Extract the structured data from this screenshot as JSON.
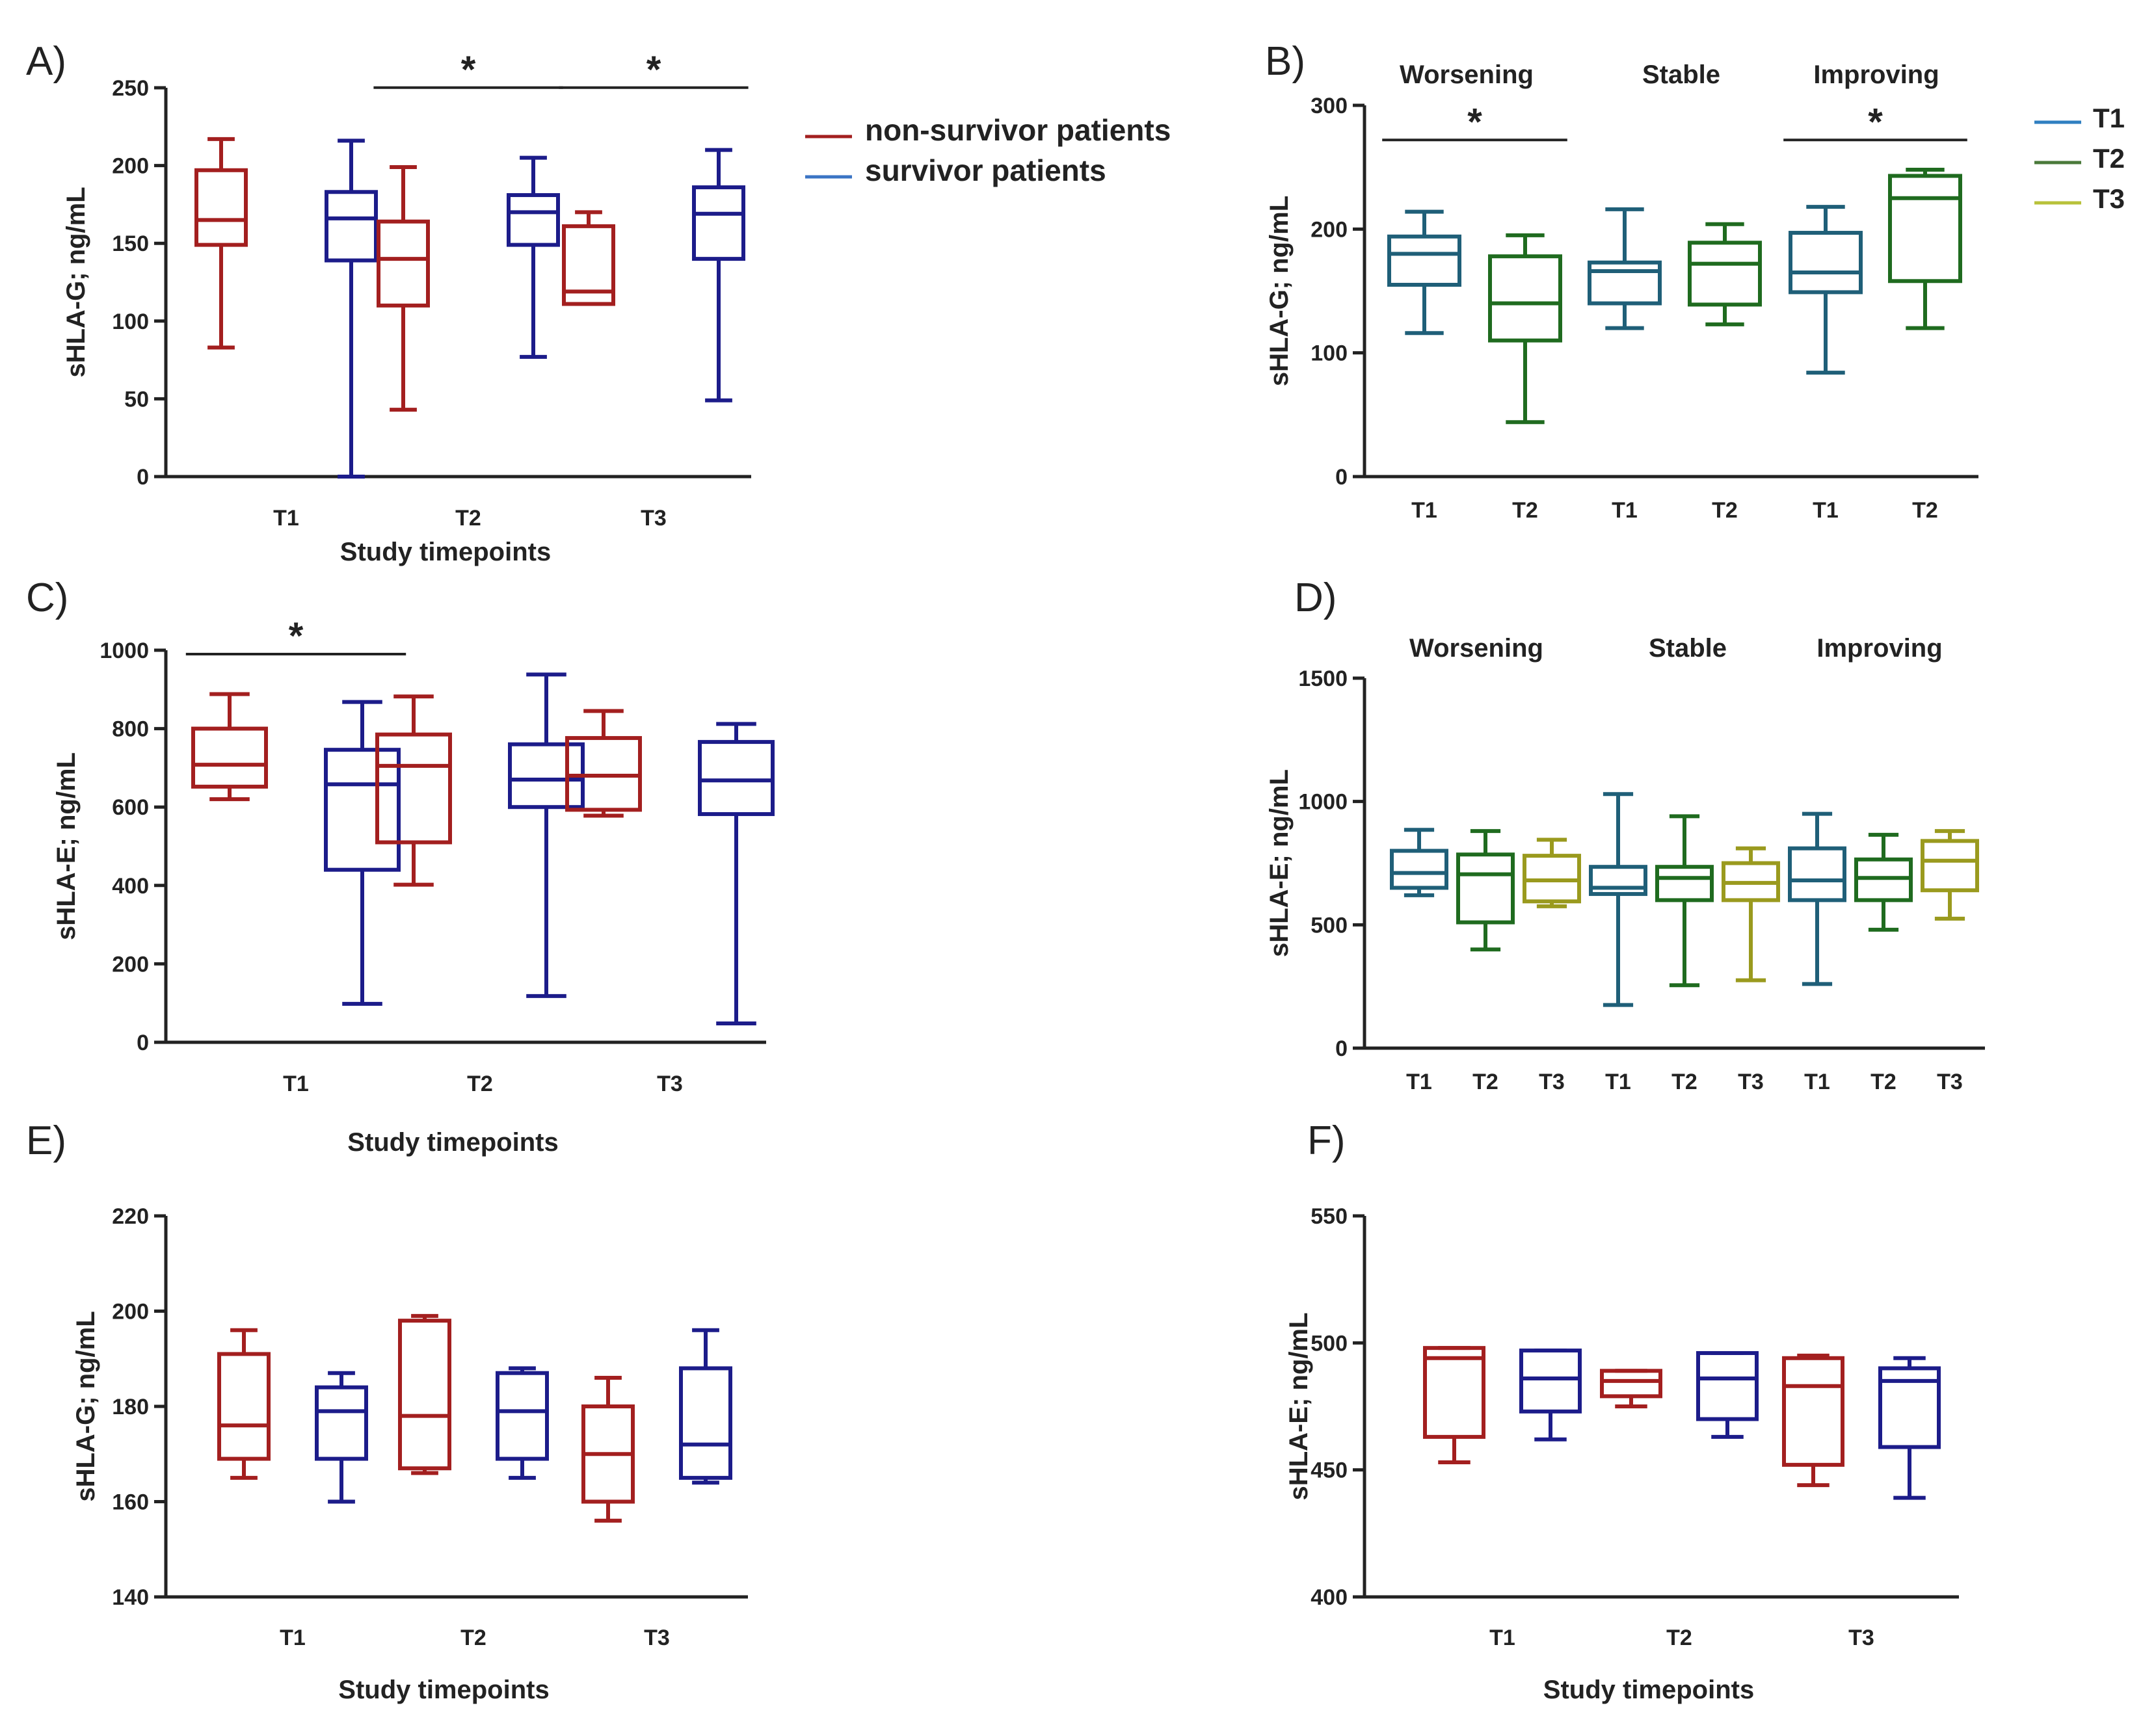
{
  "colors": {
    "non_survivor": "#a31f1f",
    "survivor": "#1c1c8a",
    "T1": "#1f5f78",
    "T2": "#1f6b1f",
    "T3": "#9a9a1e",
    "axis": "#222222",
    "legend_T1": "#2f7fc1",
    "legend_T2": "#4a7a3a",
    "legend_T3": "#b8c23a",
    "legend_survivor": "#3b74c4"
  },
  "legend_AB": [
    {
      "label": "non-survivor patients",
      "color_key": "non_survivor"
    },
    {
      "label": "survivor patients",
      "color_key": "legend_survivor"
    }
  ],
  "legend_BD": [
    {
      "label": "T1",
      "color_key": "legend_T1"
    },
    {
      "label": "T2",
      "color_key": "legend_T2"
    },
    {
      "label": "T3",
      "color_key": "legend_T3"
    }
  ],
  "chart_data": [
    {
      "id": "A",
      "panel_label": "A)",
      "type": "box",
      "ylabel": "sHLA-G; ng/mL",
      "xlabel": "Study timepoints",
      "ylim": [
        0,
        250
      ],
      "yticks": [
        0,
        50,
        100,
        150,
        200,
        250
      ],
      "categories": [
        "T1",
        "T2",
        "T3"
      ],
      "group_labels": [],
      "boxes": [
        {
          "cat": 0,
          "offset": -1,
          "color_key": "non_survivor",
          "whislo": 83,
          "q1": 149,
          "med": 165,
          "q3": 197,
          "whishi": 217
        },
        {
          "cat": 0,
          "offset": 1,
          "color_key": "survivor",
          "whislo": 0,
          "q1": 139,
          "med": 166,
          "q3": 183,
          "whishi": 216
        },
        {
          "cat": 1,
          "offset": -1,
          "color_key": "non_survivor",
          "whislo": 43,
          "q1": 110,
          "med": 140,
          "q3": 164,
          "whishi": 199
        },
        {
          "cat": 1,
          "offset": 1,
          "color_key": "survivor",
          "whislo": 77,
          "q1": 149,
          "med": 170,
          "q3": 181,
          "whishi": 205
        },
        {
          "cat": 2,
          "offset": -1,
          "color_key": "non_survivor",
          "whislo": 111,
          "q1": 111,
          "med": 119,
          "q3": 161,
          "whishi": 170
        },
        {
          "cat": 2,
          "offset": 1,
          "color_key": "survivor",
          "whislo": 49,
          "q1": 140,
          "med": 169,
          "q3": 186,
          "whishi": 210
        }
      ],
      "significance": [
        {
          "from": 2,
          "to": 3,
          "level": 248,
          "label": "*"
        },
        {
          "from": 4,
          "to": 5,
          "level": 248,
          "label": "*"
        }
      ]
    },
    {
      "id": "B",
      "panel_label": "B)",
      "type": "box",
      "ylabel": "sHLA-G; ng/mL",
      "xlabel": "",
      "ylim": [
        0,
        300
      ],
      "yticks": [
        0,
        100,
        200,
        300
      ],
      "categories": [
        "T1",
        "T2",
        "T1",
        "T2",
        "T1",
        "T2"
      ],
      "group_labels": [
        "Worsening",
        "Stable",
        "Improving"
      ],
      "boxes": [
        {
          "cat": 0,
          "offset": 0,
          "color_key": "T1",
          "whislo": 116,
          "q1": 155,
          "med": 180,
          "q3": 194,
          "whishi": 214
        },
        {
          "cat": 1,
          "offset": 0,
          "color_key": "T2",
          "whislo": 44,
          "q1": 110,
          "med": 140,
          "q3": 178,
          "whishi": 195
        },
        {
          "cat": 2,
          "offset": 0,
          "color_key": "T1",
          "whislo": 120,
          "q1": 140,
          "med": 166,
          "q3": 173,
          "whishi": 216
        },
        {
          "cat": 3,
          "offset": 0,
          "color_key": "T2",
          "whislo": 123,
          "q1": 139,
          "med": 172,
          "q3": 189,
          "whishi": 204
        },
        {
          "cat": 4,
          "offset": 0,
          "color_key": "T1",
          "whislo": 84,
          "q1": 149,
          "med": 165,
          "q3": 197,
          "whishi": 218
        },
        {
          "cat": 5,
          "offset": 0,
          "color_key": "T2",
          "whislo": 120,
          "q1": 158,
          "med": 225,
          "q3": 243,
          "whishi": 248
        }
      ],
      "significance": [
        {
          "from": 0,
          "to": 1,
          "level": 272,
          "label": "*"
        },
        {
          "from": 4,
          "to": 5,
          "level": 272,
          "label": "*"
        }
      ]
    },
    {
      "id": "C",
      "panel_label": "C)",
      "type": "box",
      "ylabel": "sHLA-E; ng/mL",
      "xlabel": "Study timepoints",
      "ylim": [
        0,
        1000
      ],
      "yticks": [
        0,
        200,
        400,
        600,
        800,
        1000
      ],
      "categories": [
        "T1",
        "T2",
        "T3"
      ],
      "group_labels": [],
      "boxes": [
        {
          "cat": 0,
          "offset": -1,
          "color_key": "non_survivor",
          "whislo": 620,
          "q1": 652,
          "med": 708,
          "q3": 800,
          "whishi": 888
        },
        {
          "cat": 0,
          "offset": 1,
          "color_key": "survivor",
          "whislo": 98,
          "q1": 440,
          "med": 658,
          "q3": 746,
          "whishi": 868
        },
        {
          "cat": 1,
          "offset": -1,
          "color_key": "non_survivor",
          "whislo": 402,
          "q1": 510,
          "med": 705,
          "q3": 785,
          "whishi": 882
        },
        {
          "cat": 1,
          "offset": 1,
          "color_key": "survivor",
          "whislo": 118,
          "q1": 600,
          "med": 670,
          "q3": 760,
          "whishi": 938
        },
        {
          "cat": 2,
          "offset": -1,
          "color_key": "non_survivor",
          "whislo": 578,
          "q1": 593,
          "med": 680,
          "q3": 776,
          "whishi": 845
        },
        {
          "cat": 2,
          "offset": 1,
          "color_key": "survivor",
          "whislo": 48,
          "q1": 582,
          "med": 668,
          "q3": 766,
          "whishi": 812
        }
      ],
      "significance": [
        {
          "from": 0,
          "to": 1,
          "level": 990,
          "label": "*"
        }
      ]
    },
    {
      "id": "D",
      "panel_label": "D)",
      "type": "box",
      "ylabel": "sHLA-E; ng/mL",
      "xlabel": "",
      "ylim": [
        0,
        1500
      ],
      "yticks": [
        0,
        500,
        1000,
        1500
      ],
      "categories": [
        "T1",
        "T2",
        "T3",
        "T1",
        "T2",
        "T3",
        "T1",
        "T2",
        "T3"
      ],
      "group_labels": [
        "Worsening",
        "Stable",
        "Improving"
      ],
      "boxes": [
        {
          "cat": 0,
          "offset": 0,
          "color_key": "T1",
          "whislo": 620,
          "q1": 650,
          "med": 710,
          "q3": 800,
          "whishi": 885
        },
        {
          "cat": 1,
          "offset": 0,
          "color_key": "T2",
          "whislo": 400,
          "q1": 510,
          "med": 705,
          "q3": 785,
          "whishi": 880
        },
        {
          "cat": 2,
          "offset": 0,
          "color_key": "T3",
          "whislo": 575,
          "q1": 595,
          "med": 680,
          "q3": 780,
          "whishi": 845
        },
        {
          "cat": 3,
          "offset": 0,
          "color_key": "T1",
          "whislo": 175,
          "q1": 625,
          "med": 650,
          "q3": 735,
          "whishi": 1030
        },
        {
          "cat": 4,
          "offset": 0,
          "color_key": "T2",
          "whislo": 255,
          "q1": 600,
          "med": 690,
          "q3": 735,
          "whishi": 940
        },
        {
          "cat": 5,
          "offset": 0,
          "color_key": "T3",
          "whislo": 275,
          "q1": 600,
          "med": 670,
          "q3": 750,
          "whishi": 810
        },
        {
          "cat": 6,
          "offset": 0,
          "color_key": "T1",
          "whislo": 260,
          "q1": 600,
          "med": 680,
          "q3": 810,
          "whishi": 950
        },
        {
          "cat": 7,
          "offset": 0,
          "color_key": "T2",
          "whislo": 480,
          "q1": 600,
          "med": 690,
          "q3": 765,
          "whishi": 865
        },
        {
          "cat": 8,
          "offset": 0,
          "color_key": "T3",
          "whislo": 525,
          "q1": 640,
          "med": 760,
          "q3": 840,
          "whishi": 880
        }
      ],
      "significance": []
    },
    {
      "id": "E",
      "panel_label": "E)",
      "type": "box",
      "ylabel": "sHLA-G; ng/mL",
      "xlabel": "Study timepoints",
      "ylim": [
        140,
        220
      ],
      "yticks": [
        140,
        160,
        180,
        200,
        220
      ],
      "categories": [
        "T1",
        "T2",
        "T3"
      ],
      "group_labels": [],
      "boxes": [
        {
          "cat": 0,
          "offset": -1,
          "color_key": "non_survivor",
          "whislo": 165,
          "q1": 169,
          "med": 176,
          "q3": 191,
          "whishi": 196
        },
        {
          "cat": 0,
          "offset": 1,
          "color_key": "survivor",
          "whislo": 160,
          "q1": 169,
          "med": 179,
          "q3": 184,
          "whishi": 187
        },
        {
          "cat": 1,
          "offset": -1,
          "color_key": "non_survivor",
          "whislo": 166,
          "q1": 167,
          "med": 178,
          "q3": 198,
          "whishi": 199
        },
        {
          "cat": 1,
          "offset": 1,
          "color_key": "survivor",
          "whislo": 165,
          "q1": 169,
          "med": 179,
          "q3": 187,
          "whishi": 188
        },
        {
          "cat": 2,
          "offset": -1,
          "color_key": "non_survivor",
          "whislo": 156,
          "q1": 160,
          "med": 170,
          "q3": 180,
          "whishi": 186
        },
        {
          "cat": 2,
          "offset": 1,
          "color_key": "survivor",
          "whislo": 164,
          "q1": 165,
          "med": 172,
          "q3": 188,
          "whishi": 196
        }
      ],
      "significance": []
    },
    {
      "id": "F",
      "panel_label": "F)",
      "type": "box",
      "ylabel": "sHLA-E; ng/mL",
      "xlabel": "Study timepoints",
      "ylim": [
        400,
        550
      ],
      "yticks": [
        400,
        450,
        500,
        550
      ],
      "categories": [
        "T1",
        "T2",
        "T3"
      ],
      "group_labels": [],
      "boxes": [
        {
          "cat": 0,
          "offset": -1,
          "color_key": "non_survivor",
          "whislo": 453,
          "q1": 463,
          "med": 494,
          "q3": 498,
          "whishi": 498
        },
        {
          "cat": 0,
          "offset": 1,
          "color_key": "survivor",
          "whislo": 462,
          "q1": 473,
          "med": 486,
          "q3": 497,
          "whishi": 497
        },
        {
          "cat": 1,
          "offset": -1,
          "color_key": "non_survivor",
          "whislo": 475,
          "q1": 479,
          "med": 485,
          "q3": 489,
          "whishi": 489
        },
        {
          "cat": 1,
          "offset": 1,
          "color_key": "survivor",
          "whislo": 463,
          "q1": 470,
          "med": 486,
          "q3": 496,
          "whishi": 496
        },
        {
          "cat": 2,
          "offset": -1,
          "color_key": "non_survivor",
          "whislo": 444,
          "q1": 452,
          "med": 483,
          "q3": 494,
          "whishi": 495
        },
        {
          "cat": 2,
          "offset": 1,
          "color_key": "survivor",
          "whislo": 439,
          "q1": 459,
          "med": 485,
          "q3": 490,
          "whishi": 494
        }
      ],
      "significance": []
    }
  ]
}
